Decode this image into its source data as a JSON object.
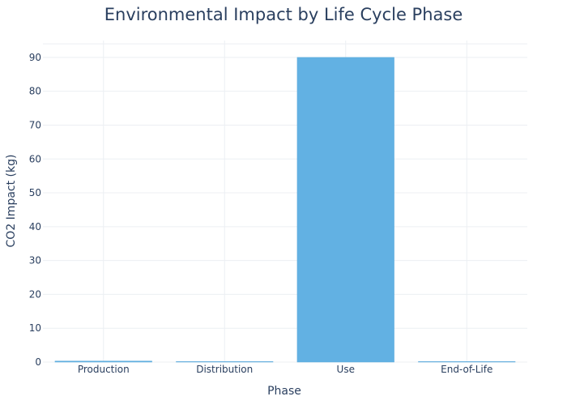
{
  "chart_data": {
    "type": "bar",
    "title": "Environmental Impact by Life Cycle Phase",
    "xlabel": "Phase",
    "ylabel": "CO2 Impact (kg)",
    "categories": [
      "Production",
      "Distribution",
      "Use",
      "End-of-Life"
    ],
    "values": [
      0.3,
      0.1,
      90,
      0.05
    ],
    "ylim": [
      0,
      95
    ],
    "yticks": [
      0,
      10,
      20,
      30,
      40,
      50,
      60,
      70,
      80,
      90
    ],
    "grid": true,
    "legend": "none",
    "colors": {
      "bar": "#62b1e3",
      "bar_outline": "#58a8da",
      "grid": "#eceff3",
      "text": "#2a3f5f",
      "background": "#ffffff"
    }
  }
}
